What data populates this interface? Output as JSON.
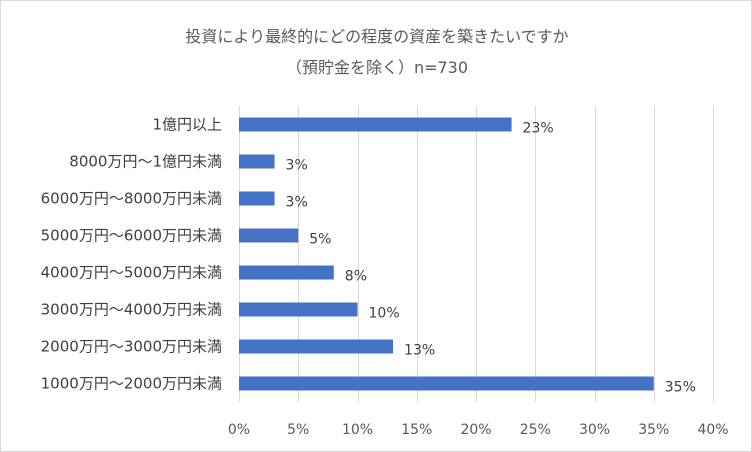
{
  "chart_data": {
    "type": "bar",
    "orientation": "horizontal",
    "title": "投資により最終的にどの程度の資産を築きたいですか",
    "subtitle": "（預貯金を除く）n=730",
    "categories": [
      "1億円以上",
      "8000万円～1億円未満",
      "6000万円～8000万円未満",
      "5000万円～6000万円未満",
      "4000万円～5000万円未満",
      "3000万円～4000万円未満",
      "2000万円～3000万円未満",
      "1000万円～2000万円未満"
    ],
    "values": [
      23,
      3,
      3,
      5,
      8,
      10,
      13,
      35
    ],
    "data_labels": [
      "23%",
      "3%",
      "3%",
      "5%",
      "8%",
      "10%",
      "13%",
      "35%"
    ],
    "xlim": [
      0,
      40
    ],
    "xticks": [
      0,
      5,
      10,
      15,
      20,
      25,
      30,
      35,
      40
    ],
    "xtick_labels": [
      "0%",
      "5%",
      "10%",
      "15%",
      "20%",
      "25%",
      "30%",
      "35%",
      "40%"
    ],
    "grid": "vertical",
    "legend": "none",
    "bar_color": "#4472c4",
    "grid_color": "#d9d9d9"
  }
}
